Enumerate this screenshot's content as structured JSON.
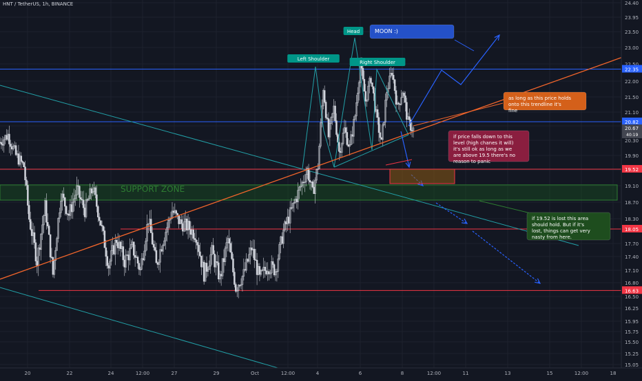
{
  "chart_title": "HNT / TetherUS, 1h, BINANCE",
  "colors": {
    "background": "#131722",
    "grid": "#1e222d",
    "axis_text": "#b2b5be",
    "up_candle": "#d1d4dc",
    "down_candle": "#d1d4dc",
    "blue_line": "#2962ff",
    "red_line": "#f23645",
    "teal_line": "#22a1a8",
    "orange_line": "#f2652b",
    "support_zone": "#1b5e20"
  },
  "chart_data": {
    "type": "candlestick",
    "title": "HNT / TetherUS, 1h, BINANCE",
    "ylim": [
      15.05,
      24.4
    ],
    "y_ticks": [
      "24.40",
      "23.95",
      "23.50",
      "23.00",
      "22.50",
      "22.00",
      "21.50",
      "21.10",
      "20.70",
      "20.30",
      "19.90",
      "19.50",
      "19.10",
      "18.70",
      "18.30",
      "17.70",
      "17.40",
      "17.10",
      "16.80",
      "16.50",
      "16.25",
      "15.95",
      "15.75",
      "15.50",
      "15.25",
      "15.05"
    ],
    "x_ticks": [
      "20",
      "22",
      "24",
      "12:00",
      "27",
      "29",
      "Oct",
      "12:00",
      "4",
      "6",
      "8",
      "12:00",
      "11",
      "13",
      "15",
      "12:00",
      "18"
    ],
    "price_path": [
      {
        "t": 0,
        "p": 20.25
      },
      {
        "t": 3,
        "p": 20.45
      },
      {
        "t": 6,
        "p": 19.9
      },
      {
        "t": 9,
        "p": 19.6
      },
      {
        "t": 11,
        "p": 18.3
      },
      {
        "t": 14,
        "p": 17.3
      },
      {
        "t": 17,
        "p": 18.6
      },
      {
        "t": 20,
        "p": 17.0
      },
      {
        "t": 23,
        "p": 18.9
      },
      {
        "t": 26,
        "p": 18.4
      },
      {
        "t": 29,
        "p": 19.0
      },
      {
        "t": 32,
        "p": 18.5
      },
      {
        "t": 35,
        "p": 19.05
      },
      {
        "t": 38,
        "p": 18.2
      },
      {
        "t": 41,
        "p": 17.2
      },
      {
        "t": 44,
        "p": 17.8
      },
      {
        "t": 47,
        "p": 17.3
      },
      {
        "t": 50,
        "p": 17.6
      },
      {
        "t": 53,
        "p": 17.1
      },
      {
        "t": 56,
        "p": 18.3
      },
      {
        "t": 59,
        "p": 17.2
      },
      {
        "t": 62,
        "p": 17.9
      },
      {
        "t": 65,
        "p": 18.5
      },
      {
        "t": 68,
        "p": 18.2
      },
      {
        "t": 71,
        "p": 18.1
      },
      {
        "t": 74,
        "p": 17.9
      },
      {
        "t": 77,
        "p": 17.0
      },
      {
        "t": 80,
        "p": 17.5
      },
      {
        "t": 83,
        "p": 16.9
      },
      {
        "t": 86,
        "p": 17.8
      },
      {
        "t": 89,
        "p": 16.7
      },
      {
        "t": 92,
        "p": 17.0
      },
      {
        "t": 95,
        "p": 17.6
      },
      {
        "t": 98,
        "p": 16.9
      },
      {
        "t": 101,
        "p": 17.2
      },
      {
        "t": 104,
        "p": 17.1
      },
      {
        "t": 107,
        "p": 18.0
      },
      {
        "t": 110,
        "p": 18.5
      },
      {
        "t": 113,
        "p": 19.0
      },
      {
        "t": 116,
        "p": 19.5
      },
      {
        "t": 118,
        "p": 18.9
      },
      {
        "t": 120,
        "p": 19.6
      },
      {
        "t": 122,
        "p": 21.8
      },
      {
        "t": 124,
        "p": 20.4
      },
      {
        "t": 126,
        "p": 21.2
      },
      {
        "t": 128,
        "p": 20.0
      },
      {
        "t": 130,
        "p": 20.6
      },
      {
        "t": 132,
        "p": 20.1
      },
      {
        "t": 134,
        "p": 21.0
      },
      {
        "t": 136,
        "p": 22.5
      },
      {
        "t": 138,
        "p": 21.4
      },
      {
        "t": 140,
        "p": 22.1
      },
      {
        "t": 142,
        "p": 21.0
      },
      {
        "t": 144,
        "p": 20.2
      },
      {
        "t": 146,
        "p": 21.7
      },
      {
        "t": 148,
        "p": 22.3
      },
      {
        "t": 150,
        "p": 21.2
      },
      {
        "t": 152,
        "p": 21.7
      },
      {
        "t": 154,
        "p": 20.8
      },
      {
        "t": 156,
        "p": 20.6
      }
    ],
    "horizontal_levels": [
      {
        "price": 22.35,
        "label": "22.35",
        "color": "#2962ff"
      },
      {
        "price": 20.82,
        "label": "20.82",
        "color": "#2962ff"
      },
      {
        "price": 19.52,
        "label": "19.52",
        "color": "#f23645"
      },
      {
        "price": 18.05,
        "label": "18.05",
        "color": "#f23645"
      },
      {
        "price": 16.63,
        "label": "16.63",
        "color": "#f23645"
      }
    ],
    "current_price": {
      "price": "20.67",
      "countdown": "40:19"
    },
    "pattern_labels": {
      "left_shoulder": "Left Shoulder",
      "head": "Head",
      "right_shoulder": "Right Shoulder"
    },
    "support_zone_label": "SUPPORT ZONE",
    "annotations": {
      "moon": "MOON :)",
      "trendline_note": "as long as this price holds onto this trendline it's fine",
      "falls_note": "if price falls down to this level (high chanes it will) it's still ok as long as we are above 19.5 there's no reason to panic",
      "lost_note": "if 19.52 is lost this area should hold. But if it's lost, things can get very nasty from here."
    }
  }
}
